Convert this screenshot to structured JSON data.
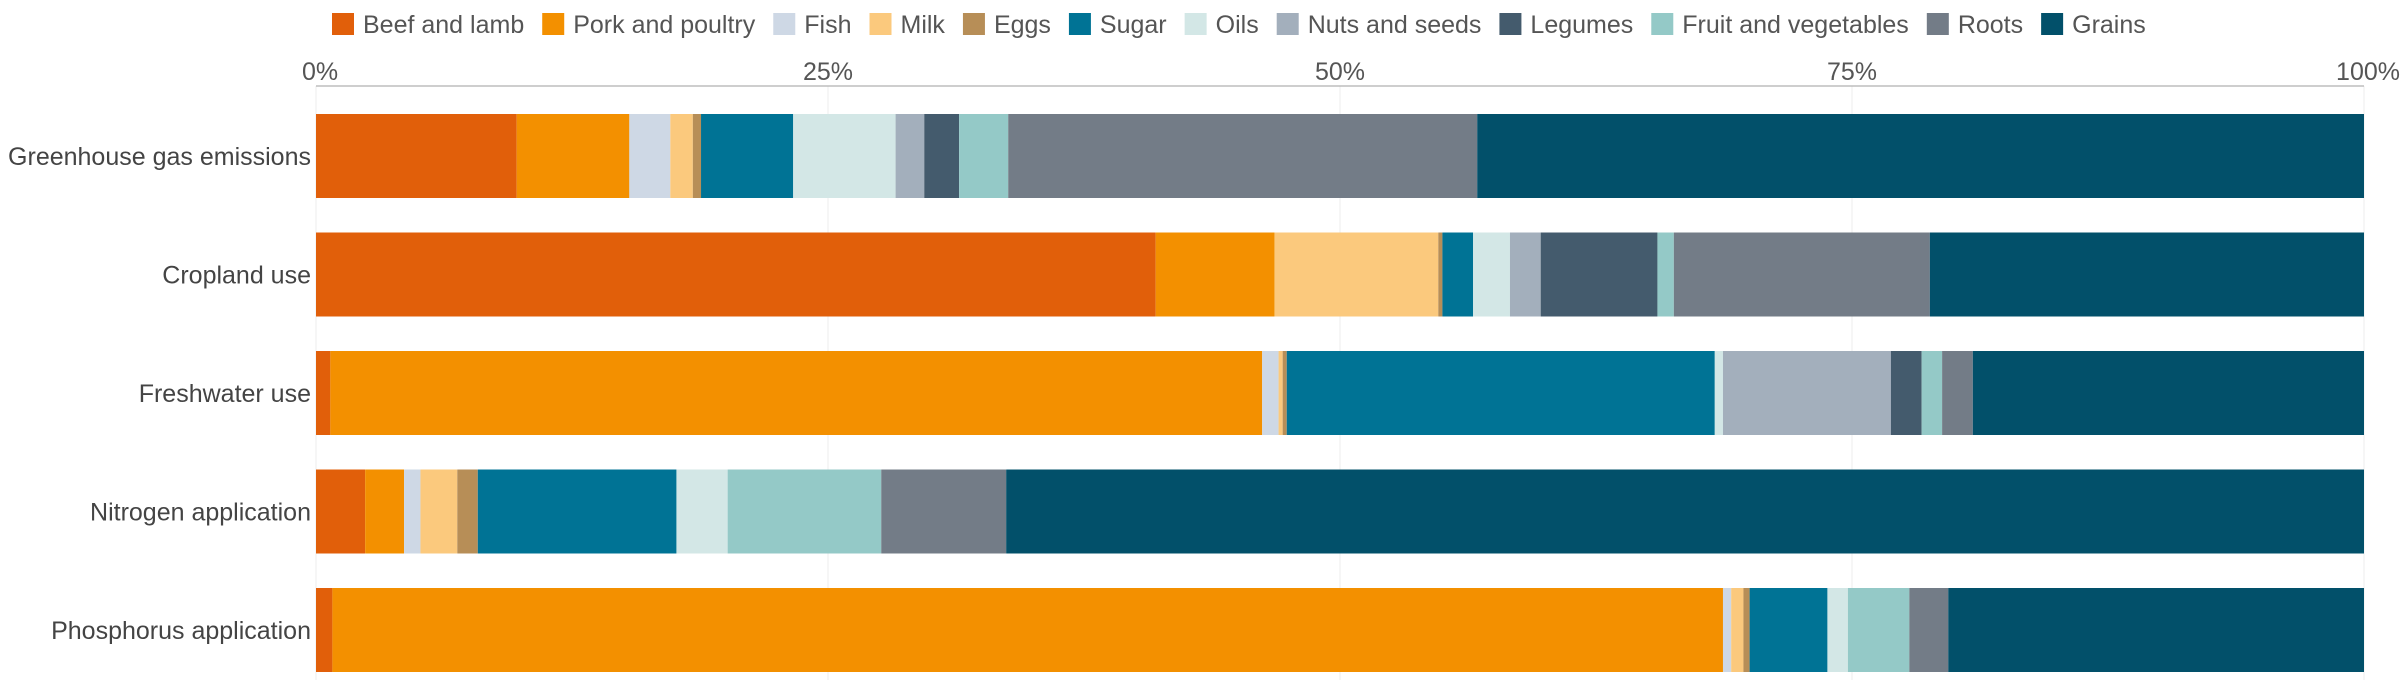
{
  "chart_data": {
    "type": "bar",
    "orientation": "horizontal",
    "stacked": true,
    "x_ticks": [
      "0%",
      "25%",
      "50%",
      "75%",
      "100%"
    ],
    "xlim": [
      0,
      100
    ],
    "grid": true,
    "legend_position": "top",
    "categories": [
      "Greenhouse gas emissions",
      "Cropland use",
      "Freshwater use",
      "Nitrogen application",
      "Phosphorus application"
    ],
    "series": [
      {
        "name": "Beef and lamb",
        "color": "#e15f0a",
        "values": [
          9.8,
          41.0,
          0.7,
          2.4,
          0.8
        ]
      },
      {
        "name": "Pork and poultry",
        "color": "#f39000",
        "values": [
          5.5,
          5.8,
          45.5,
          1.9,
          67.9
        ]
      },
      {
        "name": "Fish",
        "color": "#ced8e5",
        "values": [
          2.0,
          0.0,
          0.8,
          0.8,
          0.4
        ]
      },
      {
        "name": "Milk",
        "color": "#fbc97d",
        "values": [
          1.1,
          8.0,
          0.2,
          1.8,
          0.6
        ]
      },
      {
        "name": "Eggs",
        "color": "#b78e57",
        "values": [
          0.4,
          0.2,
          0.2,
          1.0,
          0.3
        ]
      },
      {
        "name": "Sugar",
        "color": "#007395",
        "values": [
          4.5,
          1.5,
          20.9,
          9.7,
          3.8
        ]
      },
      {
        "name": "Oils",
        "color": "#d3e7e6",
        "values": [
          5.0,
          1.8,
          0.4,
          2.5,
          1.0
        ]
      },
      {
        "name": "Nuts and seeds",
        "color": "#a3afbc",
        "values": [
          1.4,
          1.5,
          8.2,
          0.0,
          0.0
        ]
      },
      {
        "name": "Legumes",
        "color": "#445b6d",
        "values": [
          1.7,
          5.7,
          1.5,
          0.0,
          0.0
        ]
      },
      {
        "name": "Fruit and vegetables",
        "color": "#94c9c7",
        "values": [
          2.4,
          0.8,
          1.0,
          7.5,
          3.0
        ]
      },
      {
        "name": "Roots",
        "color": "#737c87",
        "values": [
          22.9,
          12.5,
          1.5,
          6.1,
          1.9
        ]
      },
      {
        "name": "Grains",
        "color": "#02506a",
        "values": [
          43.3,
          21.2,
          19.1,
          66.3,
          20.3
        ]
      }
    ]
  }
}
